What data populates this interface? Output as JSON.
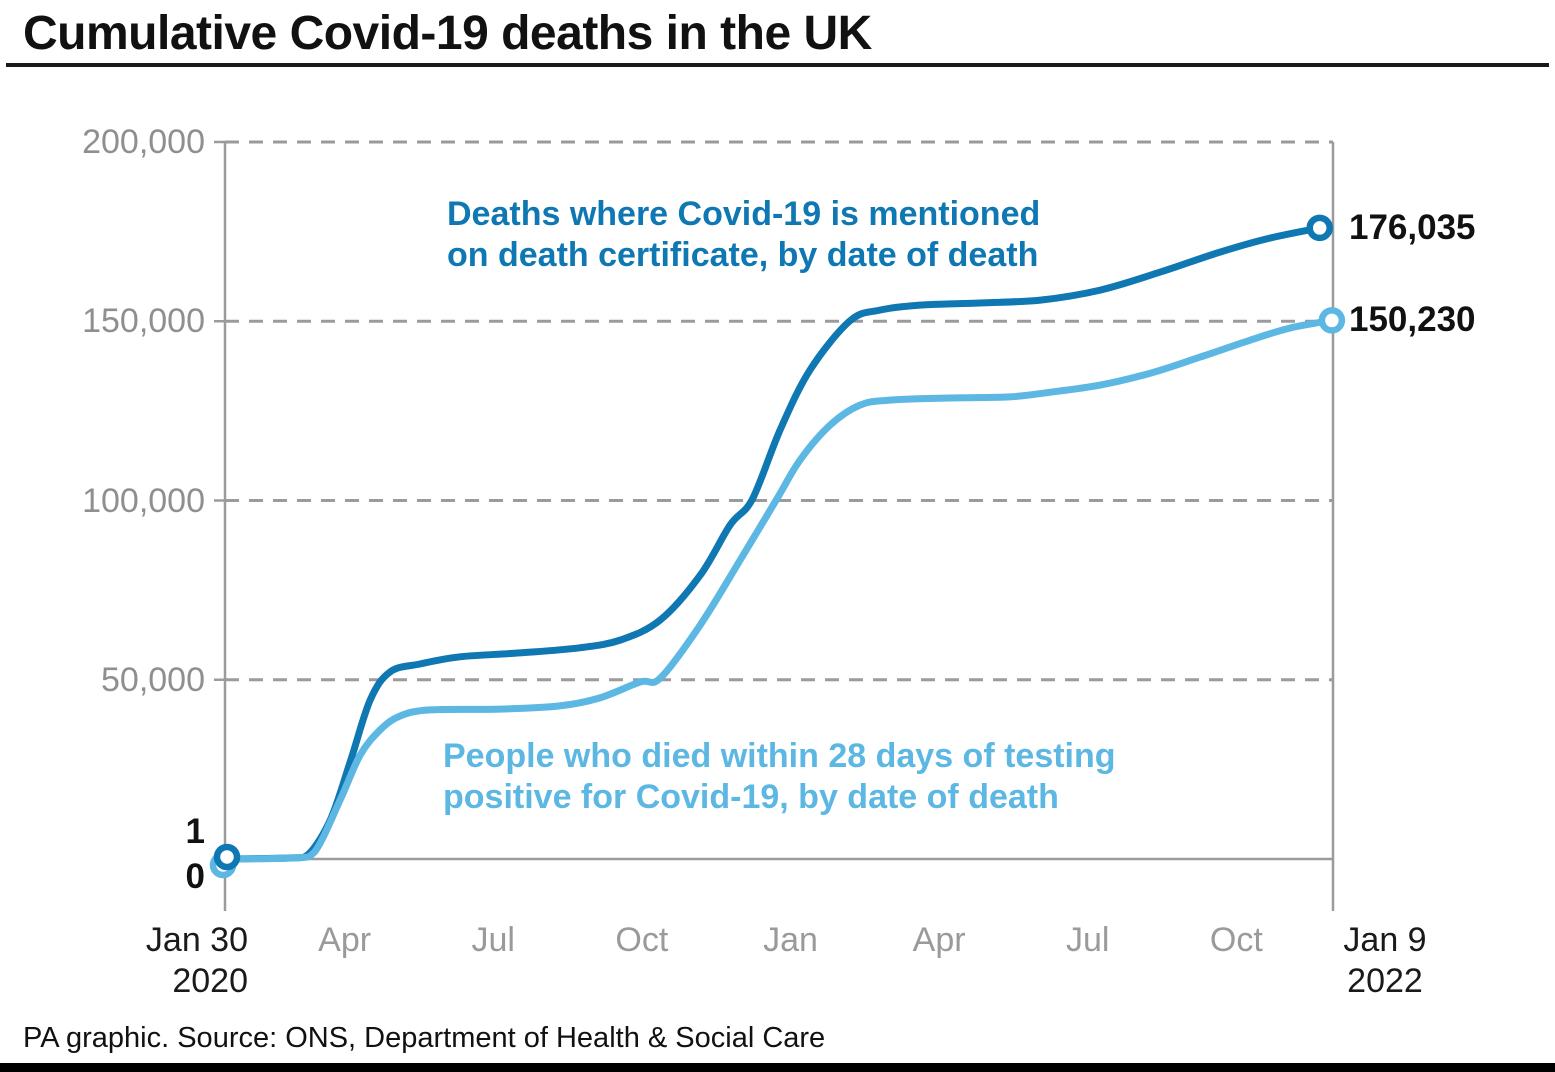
{
  "header": {
    "title": "Cumulative Covid-19 deaths in the UK"
  },
  "footer": {
    "source_line": "PA graphic. Source: ONS, Department of Health & Social Care"
  },
  "chart_data": {
    "type": "line",
    "title": "Cumulative Covid-19 deaths in the UK",
    "xlabel": "",
    "ylabel": "",
    "ylim": [
      0,
      200000
    ],
    "grid": "horizontal-dashed",
    "legend_position": "inline-annotations",
    "x_axis": {
      "start": "Jan 30 2020",
      "end": "Jan 9 2022"
    },
    "y_ticks": [
      {
        "value": 200000,
        "label": "200,000"
      },
      {
        "value": 150000,
        "label": "150,000"
      },
      {
        "value": 100000,
        "label": "100,000"
      },
      {
        "value": 50000,
        "label": "50,000"
      }
    ],
    "x_ticks": [
      {
        "label": "Jan 30",
        "sublabel": "2020",
        "strong": true
      },
      {
        "label": "Apr"
      },
      {
        "label": "Jul"
      },
      {
        "label": "Oct"
      },
      {
        "label": "Jan"
      },
      {
        "label": "Apr"
      },
      {
        "label": "Jul"
      },
      {
        "label": "Oct"
      },
      {
        "label": "Jan 9",
        "sublabel": "2022",
        "strong": true
      }
    ],
    "annotations": [
      {
        "series": "certificate",
        "line1": "Deaths where Covid-19 is mentioned",
        "line2": "on death certificate, by date of death",
        "color": "#0f77b2"
      },
      {
        "series": "28day",
        "line1": "People who died within 28 days of testing",
        "line2": "positive for Covid-19, by date of death",
        "color": "#5cb7e3"
      }
    ],
    "series": [
      {
        "id": "certificate",
        "name": "Deaths where Covid-19 is mentioned on death certificate, by date of death",
        "color": "#0f77b2",
        "start_label": "1",
        "start_value": 1,
        "end_label": "176,035",
        "end_value": 176035,
        "points": [
          [
            0.0,
            1
          ],
          [
            0.059,
            300
          ],
          [
            0.075,
            1200
          ],
          [
            0.095,
            10900
          ],
          [
            0.113,
            27100
          ],
          [
            0.131,
            44300
          ],
          [
            0.149,
            52200
          ],
          [
            0.176,
            54400
          ],
          [
            0.212,
            56400
          ],
          [
            0.266,
            57500
          ],
          [
            0.32,
            58900
          ],
          [
            0.357,
            61100
          ],
          [
            0.393,
            66700
          ],
          [
            0.429,
            79200
          ],
          [
            0.456,
            93200
          ],
          [
            0.476,
            100400
          ],
          [
            0.501,
            119700
          ],
          [
            0.528,
            136400
          ],
          [
            0.564,
            150100
          ],
          [
            0.591,
            153100
          ],
          [
            0.627,
            154500
          ],
          [
            0.681,
            155100
          ],
          [
            0.736,
            155900
          ],
          [
            0.79,
            158700
          ],
          [
            0.844,
            163700
          ],
          [
            0.898,
            169300
          ],
          [
            0.943,
            173200
          ],
          [
            0.988,
            176035
          ]
        ]
      },
      {
        "id": "28day",
        "name": "People who died within 28 days of testing positive for Covid-19, by date of death",
        "color": "#5cb7e3",
        "start_label": "0",
        "start_value": 0,
        "end_label": "150,230",
        "end_value": 150230,
        "points": [
          [
            0.0,
            0
          ],
          [
            0.063,
            300
          ],
          [
            0.081,
            2000
          ],
          [
            0.104,
            16500
          ],
          [
            0.122,
            29000
          ],
          [
            0.14,
            36000
          ],
          [
            0.158,
            39900
          ],
          [
            0.185,
            41600
          ],
          [
            0.248,
            41800
          ],
          [
            0.302,
            42700
          ],
          [
            0.338,
            44900
          ],
          [
            0.375,
            49400
          ],
          [
            0.393,
            50500
          ],
          [
            0.429,
            65300
          ],
          [
            0.465,
            83400
          ],
          [
            0.498,
            100400
          ],
          [
            0.519,
            111300
          ],
          [
            0.546,
            121000
          ],
          [
            0.573,
            126600
          ],
          [
            0.6,
            128000
          ],
          [
            0.654,
            128600
          ],
          [
            0.708,
            128900
          ],
          [
            0.745,
            130200
          ],
          [
            0.79,
            132200
          ],
          [
            0.835,
            135500
          ],
          [
            0.88,
            140000
          ],
          [
            0.925,
            144700
          ],
          [
            0.961,
            148100
          ],
          [
            0.999,
            150230
          ]
        ]
      }
    ]
  }
}
